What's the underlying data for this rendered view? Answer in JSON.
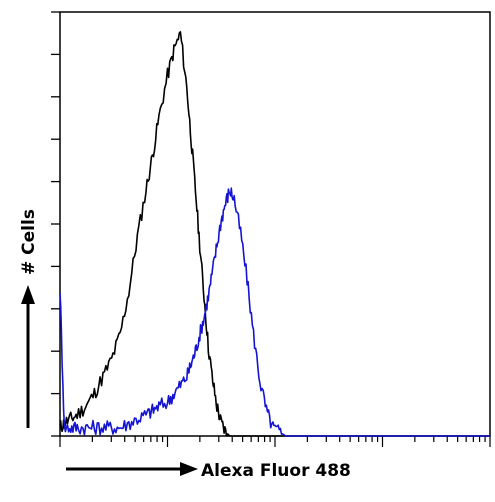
{
  "chart_data": {
    "type": "line",
    "title": "",
    "xlabel": "Alexa Fluor 488",
    "ylabel": "# Cells",
    "x_scale": "log",
    "xlim": [
      0,
      1
    ],
    "ylim": [
      0,
      1
    ],
    "grid": false,
    "legend": "none",
    "x": [
      0.0,
      0.01,
      0.025,
      0.04,
      0.06,
      0.08,
      0.1,
      0.12,
      0.14,
      0.16,
      0.18,
      0.2,
      0.215,
      0.23,
      0.25,
      0.265,
      0.28,
      0.295,
      0.305,
      0.315,
      0.325,
      0.335,
      0.345,
      0.355,
      0.365,
      0.375,
      0.385,
      0.395,
      0.405,
      0.42,
      0.435,
      0.45,
      0.465,
      0.48,
      0.495,
      0.51,
      0.525,
      0.54,
      0.56,
      0.58,
      0.6,
      0.62,
      0.65,
      0.7,
      0.75,
      0.8,
      0.85,
      0.9,
      0.95,
      1.0
    ],
    "series": [
      {
        "color": "#000000",
        "values": [
          0.02,
          0.03,
          0.04,
          0.05,
          0.07,
          0.1,
          0.14,
          0.18,
          0.24,
          0.34,
          0.47,
          0.58,
          0.66,
          0.75,
          0.85,
          0.91,
          0.95,
          0.82,
          0.7,
          0.58,
          0.45,
          0.33,
          0.21,
          0.13,
          0.07,
          0.03,
          0.01,
          0.0,
          0.0,
          0.0,
          0.0,
          0.0,
          0.0,
          0.0,
          0.0,
          0.0,
          0.0,
          0.0,
          0.0,
          0.0,
          0.0,
          0.0,
          0.0,
          0.0,
          0.0,
          0.0,
          0.0,
          0.0,
          0.0,
          0.0
        ]
      },
      {
        "color": "#1414d2",
        "values": [
          0.35,
          0.02,
          0.02,
          0.02,
          0.02,
          0.02,
          0.02,
          0.02,
          0.02,
          0.03,
          0.04,
          0.05,
          0.06,
          0.07,
          0.08,
          0.1,
          0.12,
          0.14,
          0.17,
          0.2,
          0.24,
          0.28,
          0.33,
          0.39,
          0.45,
          0.51,
          0.55,
          0.58,
          0.56,
          0.48,
          0.37,
          0.24,
          0.13,
          0.06,
          0.02,
          0.01,
          0.0,
          0.0,
          0.0,
          0.0,
          0.0,
          0.0,
          0.0,
          0.0,
          0.0,
          0.0,
          0.0,
          0.0,
          0.0,
          0.0
        ]
      }
    ]
  }
}
